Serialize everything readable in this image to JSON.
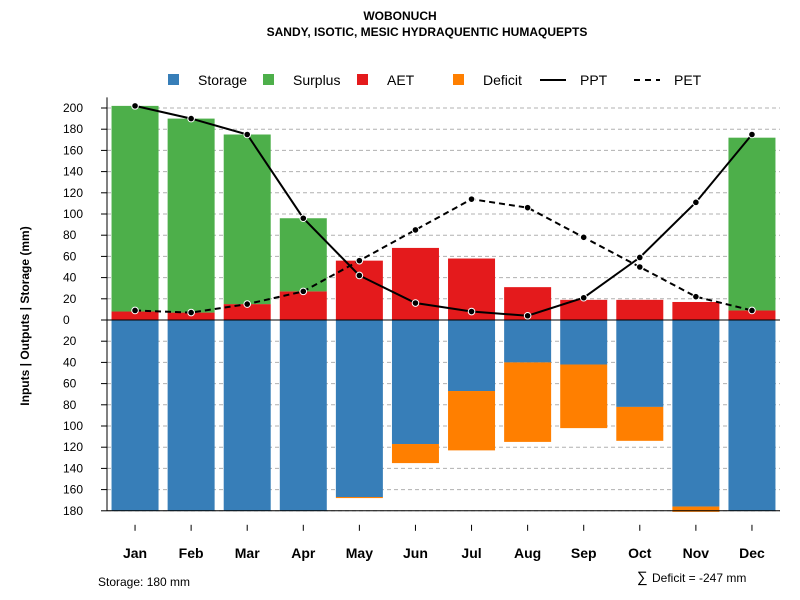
{
  "chart_data": {
    "type": "bar",
    "title": "WOBONUCH",
    "subtitle": "SANDY, ISOTIC, MESIC HYDRAQUENTIC HUMAQUEPTS",
    "ylabel": "Inputs | Outputs | Storage     (mm)",
    "xlabel": "",
    "categories": [
      "Jan",
      "Feb",
      "Mar",
      "Apr",
      "May",
      "Jun",
      "Jul",
      "Aug",
      "Sep",
      "Oct",
      "Nov",
      "Dec"
    ],
    "y_top_ticks": [
      "200",
      "180",
      "160",
      "140",
      "120",
      "100",
      "80",
      "60",
      "40",
      "20"
    ],
    "y_zero_tick": "0",
    "y_bottom_ticks": [
      "20",
      "40",
      "60",
      "80",
      "100",
      "120",
      "140",
      "160",
      "180"
    ],
    "ylim": [
      -180,
      210
    ],
    "grid": true,
    "legend_position": "top",
    "legend": [
      {
        "key": "storage",
        "label": "Storage",
        "kind": "box"
      },
      {
        "key": "surplus",
        "label": "Surplus",
        "kind": "box"
      },
      {
        "key": "aet",
        "label": "AET",
        "kind": "box"
      },
      {
        "key": "deficit",
        "label": "Deficit",
        "kind": "box"
      },
      {
        "key": "ppt",
        "label": "PPT",
        "kind": "solid-line"
      },
      {
        "key": "pet",
        "label": "PET",
        "kind": "dashed-line"
      }
    ],
    "colors": {
      "storage": "#377EB8",
      "surplus": "#4DAF4A",
      "aet": "#E41A1C",
      "deficit": "#FF7F00",
      "line": "#000000",
      "grid": "#b0b0b0"
    },
    "series": [
      {
        "name": "AET",
        "values": [
          8,
          7,
          15,
          27,
          56,
          68,
          58,
          31,
          19,
          19,
          17,
          9
        ]
      },
      {
        "name": "Surplus",
        "values": [
          194,
          183,
          160,
          69,
          0,
          0,
          0,
          0,
          0,
          0,
          0,
          163
        ]
      },
      {
        "name": "Storage",
        "values": [
          180,
          180,
          180,
          180,
          167,
          117,
          67,
          40,
          42,
          82,
          176,
          180
        ]
      },
      {
        "name": "Deficit",
        "values": [
          0,
          0,
          0,
          0,
          1,
          18,
          56,
          75,
          60,
          32,
          5,
          0
        ]
      },
      {
        "name": "PPT",
        "values": [
          202,
          190,
          175,
          96,
          42,
          16,
          8,
          4,
          21,
          59,
          111,
          175
        ]
      },
      {
        "name": "PET",
        "values": [
          9,
          7,
          15,
          27,
          56,
          85,
          114,
          106,
          78,
          50,
          22,
          9
        ]
      }
    ]
  },
  "footer": {
    "storage_note": "Storage: 180 mm",
    "deficit_symbol": "∑",
    "deficit_note": "Deficit = -247 mm"
  }
}
